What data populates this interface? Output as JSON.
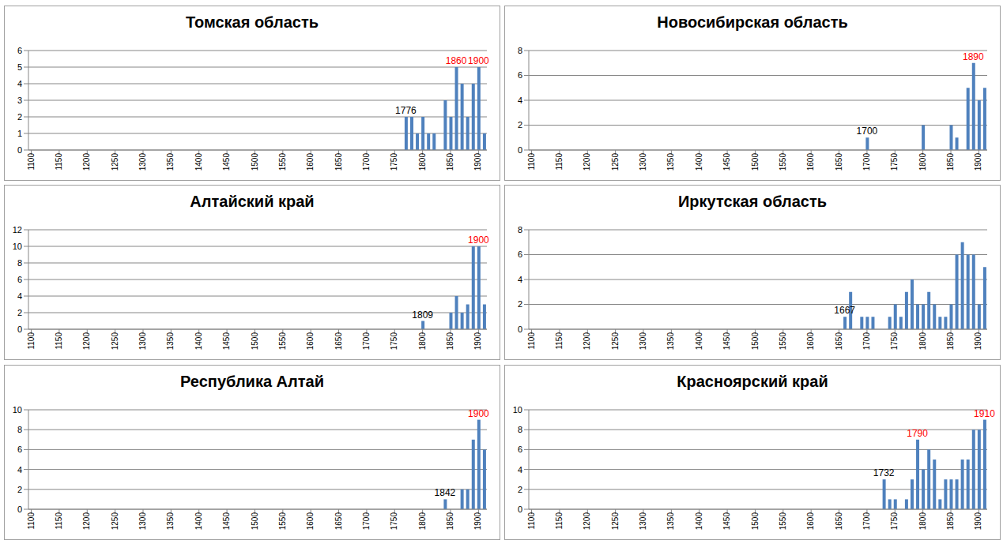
{
  "chart_data": [
    {
      "type": "bar",
      "title": "Томская область",
      "color": "#4f81bd",
      "grid": true,
      "x": [
        1770,
        1780,
        1790,
        1800,
        1810,
        1820,
        1840,
        1850,
        1860,
        1870,
        1880,
        1890,
        1900,
        1910
      ],
      "values": [
        2,
        2,
        1,
        2,
        1,
        1,
        3,
        2,
        5,
        4,
        2,
        4,
        5,
        1
      ],
      "xlim": [
        1095,
        1915
      ],
      "xticks": [
        1100,
        1150,
        1200,
        1250,
        1300,
        1350,
        1400,
        1450,
        1500,
        1550,
        1600,
        1650,
        1700,
        1750,
        1800,
        1850,
        1900
      ],
      "ylim": [
        0,
        6
      ],
      "yticks": [
        0,
        1,
        2,
        3,
        4,
        5,
        6
      ],
      "annotations": [
        {
          "text": "1776",
          "x": 1770,
          "y": 2,
          "color": "#000000"
        },
        {
          "text": "1860",
          "x": 1860,
          "y": 5,
          "color": "#ff0000"
        },
        {
          "text": "1900",
          "x": 1900,
          "y": 5,
          "color": "#ff0000"
        }
      ]
    },
    {
      "type": "bar",
      "title": "Новосибирская область",
      "color": "#4f81bd",
      "grid": true,
      "x": [
        1700,
        1800,
        1850,
        1860,
        1880,
        1890,
        1900,
        1910
      ],
      "values": [
        1,
        2,
        2,
        1,
        5,
        7,
        4,
        5
      ],
      "xlim": [
        1095,
        1915
      ],
      "xticks": [
        1100,
        1150,
        1200,
        1250,
        1300,
        1350,
        1400,
        1450,
        1500,
        1550,
        1600,
        1650,
        1700,
        1750,
        1800,
        1850,
        1900
      ],
      "ylim": [
        0,
        8
      ],
      "yticks": [
        0,
        2,
        4,
        6,
        8
      ],
      "annotations": [
        {
          "text": "1700",
          "x": 1700,
          "y": 1,
          "color": "#000000"
        },
        {
          "text": "1890",
          "x": 1890,
          "y": 7,
          "color": "#ff0000"
        }
      ]
    },
    {
      "type": "bar",
      "title": "Алтайский край",
      "color": "#4f81bd",
      "grid": true,
      "x": [
        1800,
        1850,
        1860,
        1870,
        1880,
        1890,
        1900,
        1910
      ],
      "values": [
        1,
        2,
        4,
        2,
        3,
        10,
        10,
        3
      ],
      "xlim": [
        1095,
        1915
      ],
      "xticks": [
        1100,
        1150,
        1200,
        1250,
        1300,
        1350,
        1400,
        1450,
        1500,
        1550,
        1600,
        1650,
        1700,
        1750,
        1800,
        1850,
        1900
      ],
      "ylim": [
        0,
        12
      ],
      "yticks": [
        0,
        2,
        4,
        6,
        8,
        10,
        12
      ],
      "annotations": [
        {
          "text": "1809",
          "x": 1800,
          "y": 1,
          "color": "#000000"
        },
        {
          "text": "1900",
          "x": 1900,
          "y": 10,
          "color": "#ff0000"
        }
      ]
    },
    {
      "type": "bar",
      "title": "Иркутская область",
      "color": "#4f81bd",
      "grid": true,
      "x": [
        1660,
        1670,
        1690,
        1700,
        1710,
        1740,
        1750,
        1760,
        1770,
        1780,
        1790,
        1800,
        1810,
        1820,
        1830,
        1840,
        1850,
        1860,
        1870,
        1880,
        1890,
        1900,
        1910
      ],
      "values": [
        1,
        3,
        1,
        1,
        1,
        1,
        2,
        1,
        3,
        4,
        2,
        2,
        3,
        2,
        1,
        1,
        2,
        6,
        7,
        6,
        6,
        2,
        5
      ],
      "xlim": [
        1095,
        1915
      ],
      "xticks": [
        1100,
        1150,
        1200,
        1250,
        1300,
        1350,
        1400,
        1450,
        1500,
        1550,
        1600,
        1650,
        1700,
        1750,
        1800,
        1850,
        1900
      ],
      "ylim": [
        0,
        8
      ],
      "yticks": [
        0,
        2,
        4,
        6,
        8
      ],
      "annotations": [
        {
          "text": "1667",
          "x": 1660,
          "y": 1,
          "color": "#000000"
        }
      ]
    },
    {
      "type": "bar",
      "title": "Республика Алтай",
      "color": "#4f81bd",
      "grid": true,
      "x": [
        1840,
        1870,
        1880,
        1890,
        1900,
        1910
      ],
      "values": [
        1,
        2,
        2,
        7,
        9,
        6
      ],
      "xlim": [
        1095,
        1915
      ],
      "xticks": [
        1100,
        1150,
        1200,
        1250,
        1300,
        1350,
        1400,
        1450,
        1500,
        1550,
        1600,
        1650,
        1700,
        1750,
        1800,
        1850,
        1900
      ],
      "ylim": [
        0,
        10
      ],
      "yticks": [
        0,
        2,
        4,
        6,
        8,
        10
      ],
      "annotations": [
        {
          "text": "1842",
          "x": 1840,
          "y": 1,
          "color": "#000000"
        },
        {
          "text": "1900",
          "x": 1900,
          "y": 9,
          "color": "#ff0000"
        }
      ]
    },
    {
      "type": "bar",
      "title": "Красноярский край",
      "color": "#4f81bd",
      "grid": true,
      "x": [
        1730,
        1740,
        1750,
        1770,
        1780,
        1790,
        1800,
        1810,
        1820,
        1830,
        1840,
        1850,
        1860,
        1870,
        1880,
        1890,
        1900,
        1910
      ],
      "values": [
        3,
        1,
        1,
        1,
        3,
        7,
        4,
        6,
        5,
        1,
        3,
        3,
        3,
        5,
        5,
        8,
        8,
        9
      ],
      "xlim": [
        1095,
        1915
      ],
      "xticks": [
        1100,
        1150,
        1200,
        1250,
        1300,
        1350,
        1400,
        1450,
        1500,
        1550,
        1600,
        1650,
        1700,
        1750,
        1800,
        1850,
        1900
      ],
      "ylim": [
        0,
        10
      ],
      "yticks": [
        0,
        2,
        4,
        6,
        8,
        10
      ],
      "annotations": [
        {
          "text": "1732",
          "x": 1730,
          "y": 3,
          "color": "#000000"
        },
        {
          "text": "1790",
          "x": 1790,
          "y": 7,
          "color": "#ff0000"
        },
        {
          "text": "1910",
          "x": 1910,
          "y": 9,
          "color": "#ff0000"
        }
      ]
    }
  ]
}
